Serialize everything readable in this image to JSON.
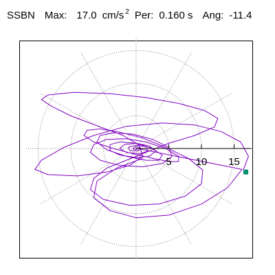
{
  "header": {
    "station": "SSBN",
    "max_label": "Max:",
    "max_value": "17.0",
    "max_unit": "cm/s",
    "max_exponent": "2",
    "per_label": "Per:",
    "per_value": "0.160 s",
    "ang_label": "Ang:",
    "ang_value": "-11.4"
  },
  "chart_data": {
    "type": "scatter",
    "title": "SSBN  Max: 17.0 cm/s2  Per: 0.160 s  Ang: -11.4",
    "xlabel": "",
    "ylabel": "",
    "radial_ticks": [
      5,
      10,
      15
    ],
    "radial_tick_labels": [
      "5",
      "10",
      "15"
    ],
    "rings": [
      5,
      10,
      15
    ],
    "spokes_deg": [
      0,
      30,
      60,
      90,
      120,
      150,
      180,
      210,
      240,
      270,
      300,
      330
    ],
    "rmax": 17.0,
    "grid": true,
    "colors": {
      "trace": "#8000c0",
      "marker": "#009070",
      "grid": "#808080",
      "axis": "#000000"
    },
    "series": [
      {
        "values": [
          [
            16.4,
            -3.3
          ],
          [
            17.2,
            -1.2
          ],
          [
            16.0,
            1.0
          ],
          [
            13.0,
            2.6
          ],
          [
            9.0,
            3.6
          ],
          [
            4.0,
            3.9
          ],
          [
            -1.5,
            3.4
          ],
          [
            -6.5,
            2.0
          ],
          [
            -11.0,
            0.2
          ],
          [
            -14.5,
            -1.8
          ],
          [
            -15.5,
            -3.2
          ],
          [
            -13.5,
            -4.0
          ],
          [
            -9.0,
            -4.2
          ],
          [
            -4.5,
            -3.6
          ],
          [
            -1.0,
            -2.6
          ],
          [
            1.0,
            -1.2
          ],
          [
            0.5,
            0.5
          ],
          [
            -2.0,
            2.0
          ],
          [
            -6.0,
            3.5
          ],
          [
            -10.0,
            5.0
          ],
          [
            -13.0,
            6.5
          ],
          [
            -14.5,
            7.5
          ],
          [
            -13.5,
            8.2
          ],
          [
            -9.5,
            8.6
          ],
          [
            -4.0,
            8.4
          ],
          [
            1.5,
            7.8
          ],
          [
            6.5,
            6.9
          ],
          [
            10.5,
            5.8
          ],
          [
            12.5,
            4.6
          ],
          [
            12.0,
            3.3
          ],
          [
            9.0,
            2.0
          ],
          [
            5.0,
            0.8
          ],
          [
            1.5,
            -0.6
          ],
          [
            -1.5,
            -1.8
          ],
          [
            -4.5,
            -3.0
          ],
          [
            -6.5,
            -4.6
          ],
          [
            -7.0,
            -6.3
          ],
          [
            -5.0,
            -7.8
          ],
          [
            -1.0,
            -8.7
          ],
          [
            3.5,
            -8.5
          ],
          [
            7.5,
            -7.3
          ],
          [
            10.0,
            -5.4
          ],
          [
            10.2,
            -3.3
          ],
          [
            8.0,
            -1.5
          ],
          [
            4.5,
            0.2
          ],
          [
            1.0,
            1.6
          ],
          [
            -2.5,
            2.5
          ],
          [
            -5.5,
            3.0
          ],
          [
            -7.5,
            2.8
          ],
          [
            -8.0,
            2.0
          ],
          [
            -6.5,
            1.0
          ],
          [
            -3.5,
            0.0
          ],
          [
            -0.5,
            -0.8
          ],
          [
            2.5,
            -1.5
          ],
          [
            5.0,
            -2.0
          ],
          [
            6.5,
            -2.0
          ],
          [
            6.5,
            -1.2
          ],
          [
            4.5,
            0.0
          ],
          [
            1.5,
            1.0
          ],
          [
            -1.5,
            1.5
          ],
          [
            -4.5,
            1.4
          ],
          [
            -6.5,
            0.6
          ],
          [
            -7.0,
            -0.6
          ],
          [
            -5.5,
            -1.8
          ],
          [
            -2.5,
            -2.6
          ],
          [
            1.0,
            -2.8
          ],
          [
            4.0,
            -2.3
          ],
          [
            5.5,
            -1.2
          ],
          [
            5.0,
            0.2
          ],
          [
            2.5,
            1.4
          ],
          [
            -0.5,
            2.2
          ],
          [
            -3.5,
            2.4
          ],
          [
            -5.5,
            2.0
          ],
          [
            -6.0,
            1.0
          ],
          [
            -4.5,
            -0.2
          ],
          [
            -1.5,
            -1.2
          ],
          [
            1.5,
            -1.8
          ],
          [
            3.5,
            -1.8
          ],
          [
            4.0,
            -1.0
          ],
          [
            2.5,
            0.0
          ],
          [
            0.0,
            0.8
          ],
          [
            -2.5,
            1.0
          ],
          [
            -4.0,
            0.6
          ],
          [
            -4.0,
            -0.3
          ],
          [
            -2.5,
            -1.0
          ],
          [
            0.0,
            -1.4
          ],
          [
            2.0,
            -1.2
          ],
          [
            3.0,
            -0.4
          ],
          [
            2.0,
            0.4
          ],
          [
            0.0,
            0.8
          ],
          [
            -1.8,
            0.6
          ],
          [
            -2.5,
            0.0
          ],
          [
            -1.5,
            -0.6
          ],
          [
            0.5,
            -0.8
          ],
          [
            1.8,
            -0.4
          ],
          [
            1.5,
            0.3
          ],
          [
            0.0,
            0.5
          ],
          [
            -1.2,
            0.2
          ],
          [
            -1.0,
            -0.3
          ],
          [
            0.2,
            -0.4
          ],
          [
            0.8,
            0.0
          ],
          [
            0.0,
            0.3
          ],
          [
            -0.5,
            0.0
          ],
          [
            0.0,
            -0.2
          ],
          [
            0.2,
            0.0
          ],
          [
            16.2,
            -3.2
          ],
          [
            14.0,
            -6.0
          ],
          [
            10.0,
            -8.5
          ],
          [
            5.0,
            -10.2
          ],
          [
            0.0,
            -10.6
          ],
          [
            -4.0,
            -9.5
          ],
          [
            -6.5,
            -7.5
          ],
          [
            -6.0,
            -5.0
          ],
          [
            -3.0,
            -3.0
          ],
          [
            1.0,
            -1.5
          ]
        ]
      }
    ],
    "marker": {
      "label": "",
      "x": 16.8,
      "y": -3.6
    }
  }
}
